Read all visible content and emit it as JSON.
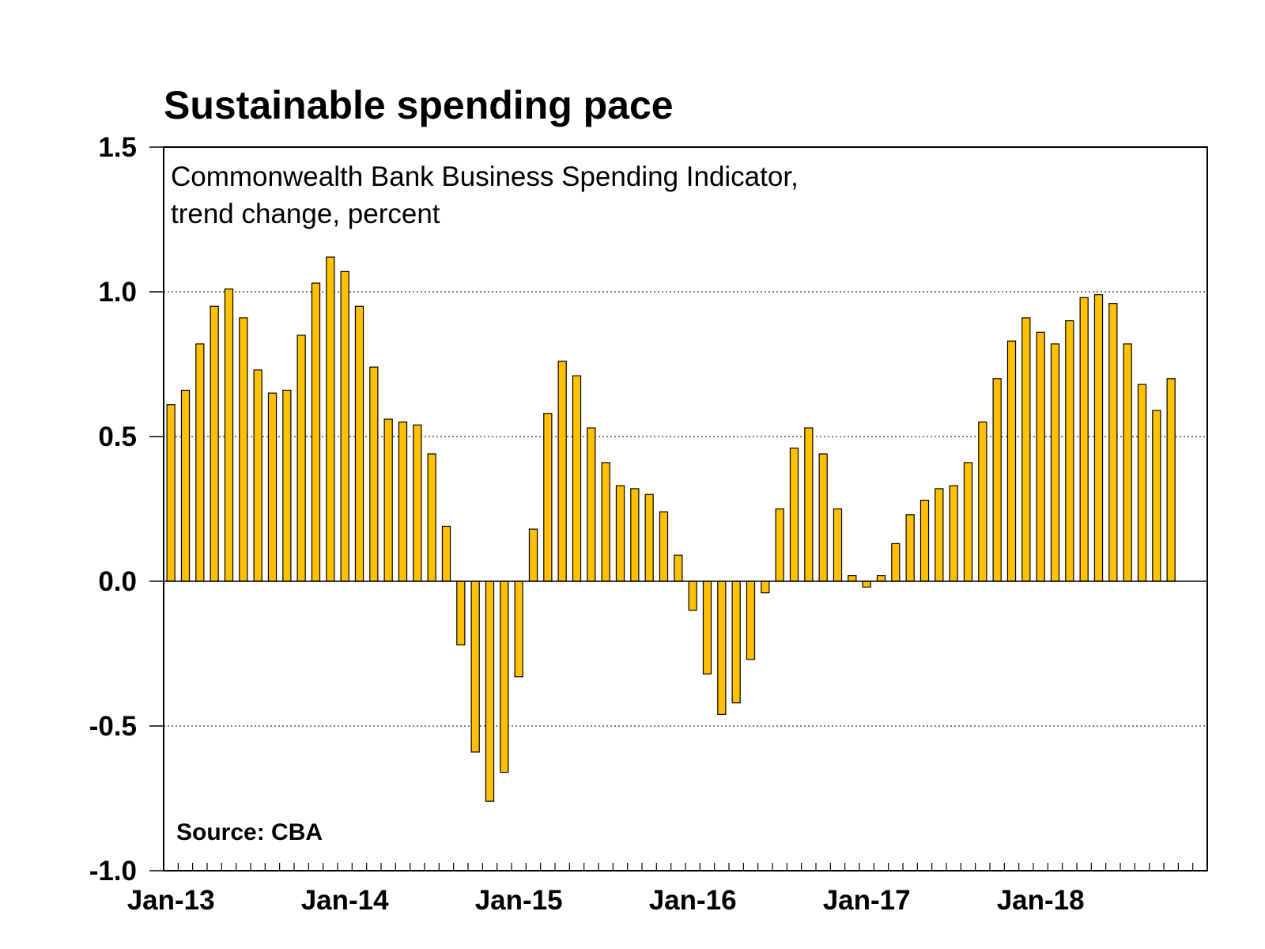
{
  "chart_data": {
    "type": "bar",
    "title": "Sustainable spending pace",
    "subtitle_lines": [
      "Commonwealth Bank Business Spending Indicator,",
      "trend change, percent"
    ],
    "source": "Source: CBA",
    "xlabel": "",
    "ylabel": "",
    "ylim": [
      -1.0,
      1.5
    ],
    "yticks": [
      "1.5",
      "1.0",
      "0.5",
      "0.0",
      "-0.5",
      "-1.0"
    ],
    "ytick_values": [
      1.5,
      1.0,
      0.5,
      0.0,
      -0.5,
      -1.0
    ],
    "xtick_labels": [
      "Jan-13",
      "Jan-14",
      "Jan-15",
      "Jan-16",
      "Jan-17",
      "Jan-18"
    ],
    "xtick_month_index": [
      0,
      12,
      24,
      36,
      48,
      60
    ],
    "n_months": 72,
    "grid": "horizontal dotted",
    "bar_color": "#FFC000",
    "bar_edge_color": "#000000",
    "series": [
      {
        "values": [
          0.61,
          0.66,
          0.82,
          0.95,
          1.01,
          0.91,
          0.73,
          0.65,
          0.66,
          0.85,
          1.03,
          1.12,
          1.07,
          0.95,
          0.74,
          0.56,
          0.55,
          0.54,
          0.44,
          0.19,
          -0.22,
          -0.59,
          -0.76,
          -0.66,
          -0.33,
          0.18,
          0.58,
          0.76,
          0.71,
          0.53,
          0.41,
          0.33,
          0.32,
          0.3,
          0.24,
          0.09,
          -0.1,
          -0.32,
          -0.46,
          -0.42,
          -0.27,
          -0.04,
          0.25,
          0.46,
          0.53,
          0.44,
          0.25,
          0.02,
          -0.02,
          0.02,
          0.13,
          0.23,
          0.28,
          0.32,
          0.33,
          0.41,
          0.55,
          0.7,
          0.83,
          0.91,
          0.86,
          0.82,
          0.9,
          0.98,
          0.99,
          0.96,
          0.82,
          0.68,
          0.59,
          0.7
        ]
      }
    ]
  }
}
